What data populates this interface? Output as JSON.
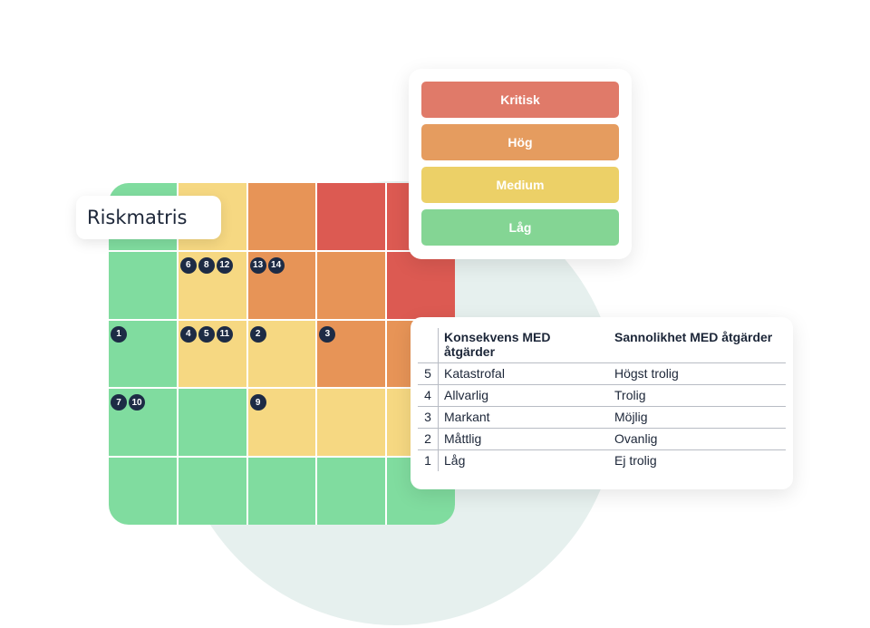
{
  "title": "Riskmatris",
  "legend": [
    {
      "label": "Kritisk",
      "color": "#e07a69"
    },
    {
      "label": "Hög",
      "color": "#e59c5f"
    },
    {
      "label": "Medium",
      "color": "#ecd067"
    },
    {
      "label": "Låg",
      "color": "#84d594"
    }
  ],
  "matrix": {
    "colors": {
      "low": "#80dc9f",
      "med": "#f6d882",
      "high": "#e79457",
      "crit": "#dc5a52"
    },
    "rows": [
      [
        {
          "level": "low",
          "markers": []
        },
        {
          "level": "med",
          "markers": []
        },
        {
          "level": "high",
          "markers": []
        },
        {
          "level": "crit",
          "markers": []
        },
        {
          "level": "crit",
          "markers": []
        }
      ],
      [
        {
          "level": "low",
          "markers": []
        },
        {
          "level": "med",
          "markers": [
            "6",
            "8",
            "12"
          ]
        },
        {
          "level": "high",
          "markers": [
            "13",
            "14"
          ]
        },
        {
          "level": "high",
          "markers": []
        },
        {
          "level": "crit",
          "markers": []
        }
      ],
      [
        {
          "level": "low",
          "markers": [
            "1"
          ]
        },
        {
          "level": "med",
          "markers": [
            "4",
            "5",
            "11"
          ]
        },
        {
          "level": "med",
          "markers": [
            "2"
          ]
        },
        {
          "level": "high",
          "markers": [
            "3"
          ]
        },
        {
          "level": "high",
          "markers": []
        }
      ],
      [
        {
          "level": "low",
          "markers": [
            "7",
            "10"
          ]
        },
        {
          "level": "low",
          "markers": []
        },
        {
          "level": "med",
          "markers": [
            "9"
          ]
        },
        {
          "level": "med",
          "markers": []
        },
        {
          "level": "med",
          "markers": []
        }
      ],
      [
        {
          "level": "low",
          "markers": []
        },
        {
          "level": "low",
          "markers": []
        },
        {
          "level": "low",
          "markers": []
        },
        {
          "level": "low",
          "markers": []
        },
        {
          "level": "low",
          "markers": []
        }
      ]
    ]
  },
  "table": {
    "headers": [
      "",
      "Konsekvens MED åtgärder",
      "Sannolikhet MED åtgärder"
    ],
    "rows": [
      {
        "num": "5",
        "konsekvens": "Katastrofal",
        "sannolikhet": "Högst trolig"
      },
      {
        "num": "4",
        "konsekvens": "Allvarlig",
        "sannolikhet": "Trolig"
      },
      {
        "num": "3",
        "konsekvens": "Markant",
        "sannolikhet": "Möjlig"
      },
      {
        "num": "2",
        "konsekvens": "Måttlig",
        "sannolikhet": "Ovanlig"
      },
      {
        "num": "1",
        "konsekvens": "Låg",
        "sannolikhet": "Ej trolig"
      }
    ]
  }
}
